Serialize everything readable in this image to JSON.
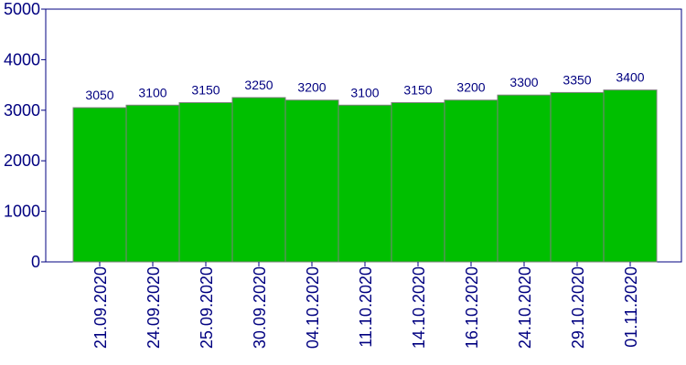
{
  "chart_data": {
    "type": "bar",
    "categories": [
      "21.09.2020",
      "24.09.2020",
      "25.09.2020",
      "30.09.2020",
      "04.10.2020",
      "11.10.2020",
      "14.10.2020",
      "16.10.2020",
      "24.10.2020",
      "29.10.2020",
      "01.11.2020"
    ],
    "values": [
      3050,
      3100,
      3150,
      3250,
      3200,
      3100,
      3150,
      3200,
      3300,
      3350,
      3400
    ],
    "value_labels": [
      "3050",
      "3100",
      "3150",
      "3250",
      "3200",
      "3100",
      "3150",
      "3200",
      "3300",
      "3350",
      "3400"
    ],
    "y_ticks": [
      "0",
      "1000",
      "2000",
      "3000",
      "4000",
      "5000"
    ],
    "ylim": [
      0,
      5000
    ],
    "grid": false,
    "legend": "none",
    "title": "",
    "xlabel": "",
    "ylabel": ""
  },
  "colors": {
    "bar_fill": "#00bf00",
    "bar_stroke": "#7f7f7f",
    "axis": "#000080",
    "text": "#000080"
  }
}
